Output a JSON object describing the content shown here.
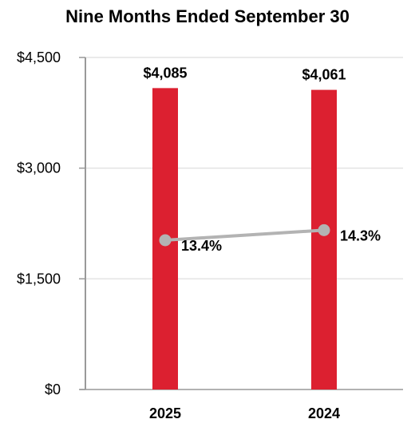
{
  "chart_data": {
    "type": "bar",
    "title": "Nine Months Ended September 30",
    "categories": [
      "2025",
      "2024"
    ],
    "series": [
      {
        "values": [
          4085,
          4061
        ],
        "labels": [
          "$4,085",
          "$4,061"
        ],
        "color": "#dc2030"
      }
    ],
    "line_series": [
      {
        "values": [
          13.4,
          14.3
        ],
        "labels": [
          "13.4%",
          "14.3%"
        ],
        "color": "#b3b3b3"
      }
    ],
    "yticks": [
      "$4,500",
      "$3,000",
      "$1,500",
      "$0"
    ],
    "ytick_values": [
      4500,
      3000,
      1500,
      0
    ],
    "ylim": [
      0,
      4500
    ],
    "line_ylim": [
      0,
      29.8
    ],
    "grid": true
  }
}
